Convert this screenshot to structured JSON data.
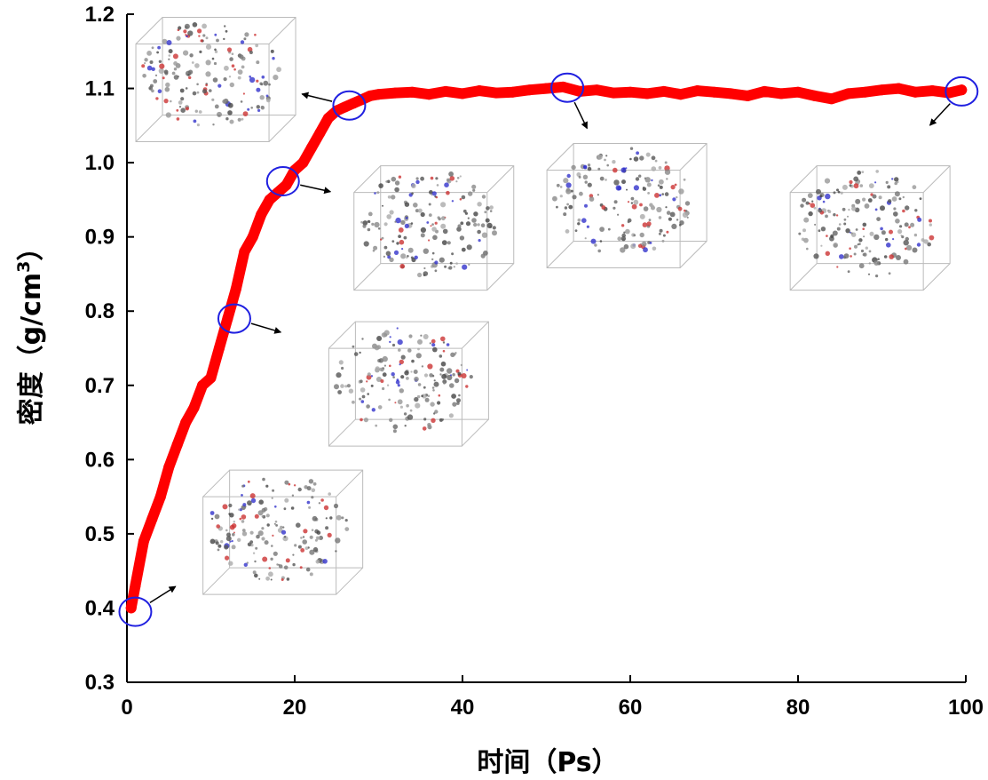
{
  "chart_data": {
    "type": "scatter",
    "xlabel": "时间（Ps）",
    "ylabel_main": "密度（g/cm",
    "ylabel_sup": "3",
    "ylabel_close": "）",
    "xlim": [
      0,
      100
    ],
    "ylim": [
      0.3,
      1.2
    ],
    "x_ticks": [
      0,
      20,
      40,
      60,
      80,
      100
    ],
    "y_ticks": [
      0.3,
      0.4,
      0.5,
      0.6,
      0.7,
      0.8,
      0.9,
      1.0,
      1.1,
      1.2
    ],
    "grid": false,
    "series": [
      {
        "name": "density",
        "color": "#ff0000",
        "x": [
          0.5,
          1,
          2,
          3,
          4,
          5,
          6,
          7,
          8,
          9,
          10,
          11,
          12,
          13,
          14,
          15,
          16,
          17,
          18,
          19,
          20,
          21,
          22,
          23,
          24,
          25,
          26,
          27,
          28,
          29,
          30,
          32,
          34,
          36,
          38,
          40,
          42,
          44,
          46,
          48,
          50,
          52,
          54,
          56,
          58,
          60,
          62,
          64,
          66,
          68,
          70,
          72,
          74,
          76,
          78,
          80,
          82,
          84,
          86,
          88,
          90,
          92,
          94,
          96,
          98,
          99.5
        ],
        "y": [
          0.4,
          0.43,
          0.49,
          0.52,
          0.55,
          0.59,
          0.62,
          0.65,
          0.67,
          0.7,
          0.71,
          0.75,
          0.79,
          0.83,
          0.88,
          0.9,
          0.93,
          0.95,
          0.96,
          0.97,
          0.99,
          1.0,
          1.02,
          1.04,
          1.06,
          1.07,
          1.075,
          1.08,
          1.085,
          1.09,
          1.092,
          1.094,
          1.095,
          1.092,
          1.096,
          1.093,
          1.097,
          1.094,
          1.095,
          1.098,
          1.1,
          1.102,
          1.096,
          1.098,
          1.094,
          1.095,
          1.093,
          1.096,
          1.092,
          1.097,
          1.095,
          1.093,
          1.09,
          1.096,
          1.093,
          1.095,
          1.09,
          1.086,
          1.093,
          1.095,
          1.098,
          1.1,
          1.095,
          1.097,
          1.094,
          1.098
        ]
      }
    ],
    "highlighted_points": [
      {
        "x": 1,
        "y": 0.395
      },
      {
        "x": 12.8,
        "y": 0.79
      },
      {
        "x": 18.6,
        "y": 0.975
      },
      {
        "x": 26.5,
        "y": 1.077
      },
      {
        "x": 52.5,
        "y": 1.101
      },
      {
        "x": 99.5,
        "y": 1.096
      }
    ],
    "snapshots": [
      {
        "name": "t0",
        "x": 17,
        "y": 0.52,
        "pt": 0
      },
      {
        "name": "t13",
        "x": 32,
        "y": 0.72,
        "pt": 1
      },
      {
        "name": "t19",
        "x": 35,
        "y": 0.93,
        "pt": 2
      },
      {
        "name": "t26",
        "x": 9,
        "y": 1.13,
        "pt": 3
      },
      {
        "name": "t52",
        "x": 58,
        "y": 0.96,
        "pt": 4
      },
      {
        "name": "t100",
        "x": 87,
        "y": 0.93,
        "pt": 5
      }
    ]
  }
}
